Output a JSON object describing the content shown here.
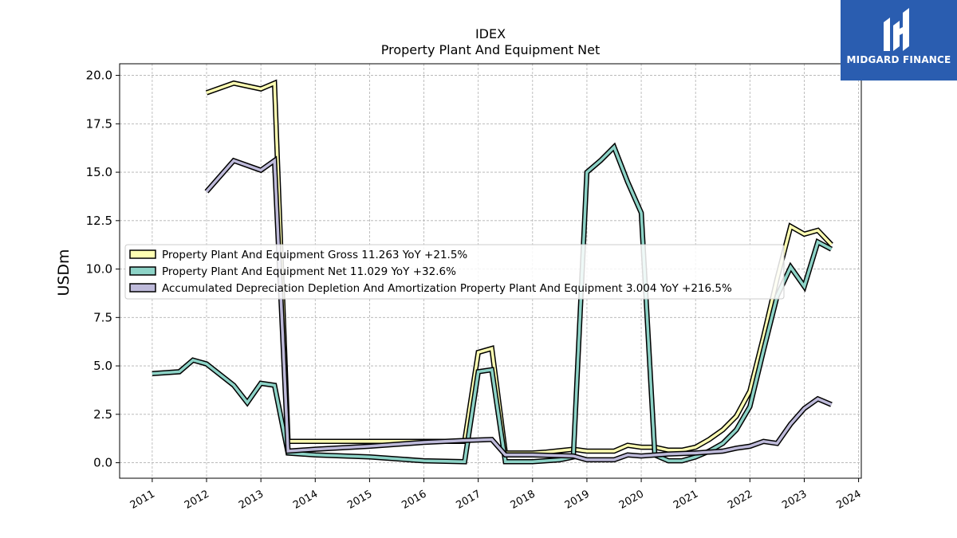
{
  "logo": {
    "text": "MIDGARD FINANCE",
    "bg": "#2a5db0"
  },
  "chart_data": {
    "type": "line",
    "title": "IDEX",
    "subtitle": "Property Plant And Equipment Net",
    "ylabel": "USDm",
    "xlabel": "",
    "ylim": [
      -0.8,
      20.6
    ],
    "xlim": [
      2010.4,
      2024.05
    ],
    "yticks": [
      0.0,
      2.5,
      5.0,
      7.5,
      10.0,
      12.5,
      15.0,
      17.5,
      20.0
    ],
    "ytick_labels": [
      "0.0",
      "2.5",
      "5.0",
      "7.5",
      "10.0",
      "12.5",
      "15.0",
      "17.5",
      "20.0"
    ],
    "xticks": [
      2011,
      2012,
      2013,
      2014,
      2015,
      2016,
      2017,
      2018,
      2019,
      2020,
      2021,
      2022,
      2023,
      2024
    ],
    "xtick_labels": [
      "2011",
      "2012",
      "2013",
      "2014",
      "2015",
      "2016",
      "2017",
      "2018",
      "2019",
      "2020",
      "2021",
      "2022",
      "2023",
      "2024"
    ],
    "grid": true,
    "legend_position": "center-left",
    "series": [
      {
        "name": "Property Plant And Equipment Gross  11.263 YoY +21.5%",
        "color": "#ffffb3",
        "points": [
          [
            2012.0,
            19.1
          ],
          [
            2012.5,
            19.6
          ],
          [
            2013.0,
            19.3
          ],
          [
            2013.25,
            19.6
          ],
          [
            2013.5,
            1.1
          ],
          [
            2014.0,
            1.1
          ],
          [
            2016.75,
            1.1
          ],
          [
            2017.0,
            5.7
          ],
          [
            2017.25,
            5.9
          ],
          [
            2017.5,
            0.5
          ],
          [
            2018.0,
            0.5
          ],
          [
            2018.25,
            0.55
          ],
          [
            2018.75,
            0.7
          ],
          [
            2019.0,
            0.6
          ],
          [
            2019.5,
            0.6
          ],
          [
            2019.75,
            0.9
          ],
          [
            2020.0,
            0.8
          ],
          [
            2020.25,
            0.8
          ],
          [
            2020.5,
            0.65
          ],
          [
            2020.75,
            0.65
          ],
          [
            2021.0,
            0.8
          ],
          [
            2021.25,
            1.2
          ],
          [
            2021.5,
            1.7
          ],
          [
            2021.75,
            2.4
          ],
          [
            2022.0,
            3.7
          ],
          [
            2022.25,
            6.5
          ],
          [
            2022.5,
            9.5
          ],
          [
            2022.75,
            12.2
          ],
          [
            2023.0,
            11.8
          ],
          [
            2023.25,
            12.0
          ],
          [
            2023.5,
            11.263
          ]
        ]
      },
      {
        "name": "Property Plant And Equipment Net  11.029 YoY +32.6%",
        "color": "#8dd3c7",
        "points": [
          [
            2011.0,
            4.6
          ],
          [
            2011.5,
            4.7
          ],
          [
            2011.75,
            5.3
          ],
          [
            2012.0,
            5.1
          ],
          [
            2012.5,
            4.0
          ],
          [
            2012.75,
            3.1
          ],
          [
            2013.0,
            4.1
          ],
          [
            2013.25,
            4.0
          ],
          [
            2013.5,
            0.5
          ],
          [
            2014.0,
            0.4
          ],
          [
            2015.0,
            0.3
          ],
          [
            2016.0,
            0.1
          ],
          [
            2016.75,
            0.05
          ],
          [
            2017.0,
            4.7
          ],
          [
            2017.25,
            4.8
          ],
          [
            2017.5,
            0.05
          ],
          [
            2018.0,
            0.05
          ],
          [
            2018.5,
            0.15
          ],
          [
            2018.75,
            0.3
          ],
          [
            2019.0,
            15.0
          ],
          [
            2019.25,
            15.6
          ],
          [
            2019.5,
            16.3
          ],
          [
            2019.75,
            14.5
          ],
          [
            2020.0,
            12.9
          ],
          [
            2020.25,
            0.4
          ],
          [
            2020.5,
            0.1
          ],
          [
            2020.75,
            0.1
          ],
          [
            2021.0,
            0.3
          ],
          [
            2021.25,
            0.6
          ],
          [
            2021.5,
            1.0
          ],
          [
            2021.75,
            1.7
          ],
          [
            2022.0,
            2.9
          ],
          [
            2022.25,
            5.8
          ],
          [
            2022.5,
            8.6
          ],
          [
            2022.75,
            10.1
          ],
          [
            2023.0,
            9.1
          ],
          [
            2023.25,
            11.4
          ],
          [
            2023.5,
            11.029
          ]
        ]
      },
      {
        "name": "Accumulated Depreciation Depletion And Amortization Property Plant And Equipment  3.004 YoY +216.5%",
        "color": "#bebada",
        "points": [
          [
            2012.0,
            14.0
          ],
          [
            2012.5,
            15.6
          ],
          [
            2013.0,
            15.1
          ],
          [
            2013.25,
            15.6
          ],
          [
            2013.5,
            0.6
          ],
          [
            2014.0,
            0.7
          ],
          [
            2015.0,
            0.85
          ],
          [
            2016.0,
            1.05
          ],
          [
            2016.75,
            1.15
          ],
          [
            2017.25,
            1.2
          ],
          [
            2017.5,
            0.4
          ],
          [
            2018.0,
            0.4
          ],
          [
            2018.75,
            0.35
          ],
          [
            2019.0,
            0.15
          ],
          [
            2019.5,
            0.15
          ],
          [
            2019.75,
            0.4
          ],
          [
            2020.0,
            0.35
          ],
          [
            2020.5,
            0.45
          ],
          [
            2021.0,
            0.5
          ],
          [
            2021.5,
            0.6
          ],
          [
            2021.75,
            0.75
          ],
          [
            2022.0,
            0.85
          ],
          [
            2022.25,
            1.1
          ],
          [
            2022.5,
            1.0
          ],
          [
            2022.75,
            2.0
          ],
          [
            2023.0,
            2.8
          ],
          [
            2023.25,
            3.3
          ],
          [
            2023.5,
            3.004
          ]
        ]
      }
    ]
  }
}
